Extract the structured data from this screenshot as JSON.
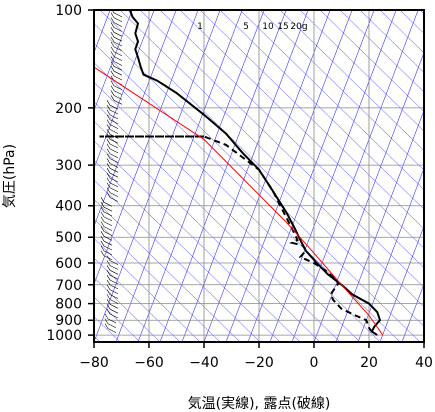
{
  "chart_data": {
    "type": "line",
    "xlabel": "気温(実線), 露点(破線)",
    "ylabel": "気圧(hPa)",
    "xlim": [
      -80,
      40
    ],
    "ylim": [
      1050,
      100
    ],
    "y_scale": "log",
    "x_ticks": [
      "−80",
      "−60",
      "−40",
      "−20",
      "0",
      "20",
      "40"
    ],
    "x_tick_values": [
      -80,
      -60,
      -40,
      -20,
      0,
      20,
      40
    ],
    "y_ticks": [
      "100",
      "200",
      "300",
      "400",
      "500",
      "600",
      "700",
      "800",
      "900",
      "1000"
    ],
    "y_tick_values": [
      100,
      200,
      300,
      400,
      500,
      600,
      700,
      800,
      900,
      1000
    ],
    "grid": true,
    "mixing_ratio_labels": [
      "1",
      "5",
      "10",
      "15",
      "20g"
    ],
    "mixing_ratio_values": [
      1,
      5,
      10,
      15,
      20
    ],
    "series": [
      {
        "style": "solid",
        "color": "#000000",
        "points": [
          [
            -67,
            100
          ],
          [
            -66,
            105
          ],
          [
            -64,
            110
          ],
          [
            -65,
            118
          ],
          [
            -64,
            125
          ],
          [
            -65,
            132
          ],
          [
            -64,
            140
          ],
          [
            -63,
            150
          ],
          [
            -62,
            158
          ],
          [
            -57,
            165
          ],
          [
            -50,
            180
          ],
          [
            -40,
            210
          ],
          [
            -32,
            240
          ],
          [
            -26,
            275
          ],
          [
            -20,
            310
          ],
          [
            -15,
            360
          ],
          [
            -10,
            420
          ],
          [
            -7,
            470
          ],
          [
            -5,
            510
          ],
          [
            -3,
            550
          ],
          [
            1,
            600
          ],
          [
            5,
            650
          ],
          [
            10,
            700
          ],
          [
            14,
            750
          ],
          [
            20,
            800
          ],
          [
            23,
            850
          ],
          [
            24,
            900
          ],
          [
            22,
            940
          ],
          [
            21,
            975
          ],
          [
            23,
            1000
          ]
        ]
      },
      {
        "style": "dashed",
        "color": "#000000",
        "points": [
          [
            -40,
            245
          ],
          [
            -78,
            245
          ],
          [
            -40,
            245
          ],
          [
            -32,
            260
          ],
          [
            -20,
            310
          ],
          [
            -15,
            360
          ],
          [
            -11,
            420
          ],
          [
            -8,
            470
          ],
          [
            -6,
            510
          ],
          [
            -8,
            520
          ],
          [
            -4,
            530
          ],
          [
            -3,
            550
          ],
          [
            -5,
            575
          ],
          [
            0,
            600
          ],
          [
            5,
            640
          ],
          [
            9,
            690
          ],
          [
            6,
            750
          ],
          [
            7,
            780
          ],
          [
            10,
            830
          ],
          [
            15,
            870
          ],
          [
            19,
            900
          ],
          [
            20,
            950
          ],
          [
            21,
            975
          ],
          [
            21,
            1000
          ]
        ]
      },
      {
        "style": "solid",
        "color": "#ff0000",
        "points": [
          [
            -80,
            150
          ],
          [
            -40,
            250
          ],
          [
            -10,
            450
          ],
          [
            0,
            560
          ],
          [
            10,
            700
          ],
          [
            20,
            870
          ],
          [
            25,
            1000
          ]
        ]
      }
    ]
  }
}
